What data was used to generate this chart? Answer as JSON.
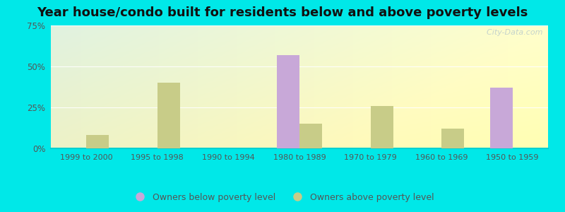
{
  "title": "Year house/condo built for residents below and above poverty levels",
  "categories": [
    "1999 to 2000",
    "1995 to 1998",
    "1990 to 1994",
    "1980 to 1989",
    "1970 to 1979",
    "1960 to 1969",
    "1950 to 1959"
  ],
  "below_poverty": [
    0,
    0,
    0,
    57,
    0,
    0,
    37
  ],
  "above_poverty": [
    8,
    40,
    0,
    15,
    26,
    12,
    0
  ],
  "below_color": "#c8a8d8",
  "above_color": "#c8cc88",
  "ylim": [
    0,
    75
  ],
  "yticks": [
    0,
    25,
    50,
    75
  ],
  "ytick_labels": [
    "0%",
    "25%",
    "50%",
    "75%"
  ],
  "legend_below": "Owners below poverty level",
  "legend_above": "Owners above poverty level",
  "outer_bg": "#00e8e8",
  "bar_width": 0.32,
  "title_fontsize": 13,
  "watermark": "  City-Data.com"
}
